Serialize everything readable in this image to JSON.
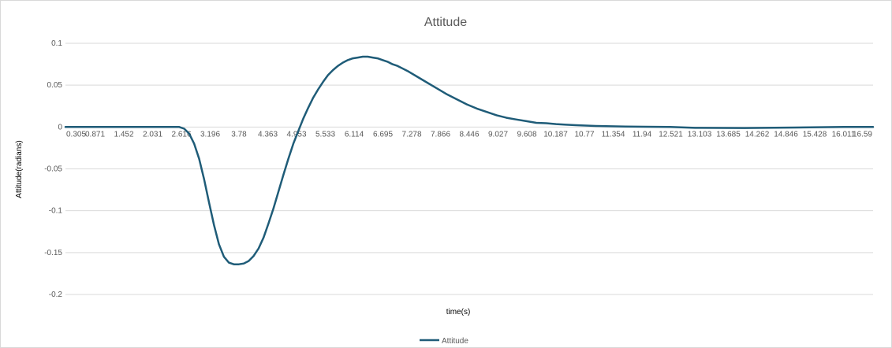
{
  "chart_data": {
    "type": "line",
    "title": "Attitude",
    "xlabel": "time(s)",
    "ylabel": "Attitude(radians)",
    "ylim": [
      -0.2,
      0.1
    ],
    "y_ticks": [
      "0.1",
      "0.05",
      "0",
      "-0.05",
      "-0.1",
      "-0.15",
      "-0.2"
    ],
    "y_tick_values": [
      0.1,
      0.05,
      0,
      -0.05,
      -0.1,
      -0.15,
      -0.2
    ],
    "x_tick_labels": [
      "0.305",
      "0.871",
      "1.452",
      "2.031",
      "2.616",
      "3.196",
      "3.78",
      "4.363",
      "4.953",
      "5.533",
      "6.114",
      "6.695",
      "7.278",
      "7.866",
      "8.446",
      "9.027",
      "9.608",
      "10.187",
      "10.77",
      "11.354",
      "11.94",
      "12.521",
      "13.103",
      "13.685",
      "14.262",
      "14.846",
      "15.428",
      "16.011",
      "16.59"
    ],
    "x_range": [
      0.305,
      16.59
    ],
    "grid": true,
    "legend_position": "bottom",
    "series": [
      {
        "name": "Attitude",
        "color": "#1f5c78",
        "x": [
          0.305,
          1.0,
          2.0,
          2.6,
          2.7,
          2.8,
          2.9,
          3.0,
          3.1,
          3.2,
          3.3,
          3.4,
          3.5,
          3.6,
          3.7,
          3.8,
          3.9,
          4.0,
          4.1,
          4.2,
          4.3,
          4.4,
          4.5,
          4.6,
          4.7,
          4.8,
          4.9,
          5.0,
          5.1,
          5.2,
          5.3,
          5.4,
          5.5,
          5.6,
          5.7,
          5.8,
          5.9,
          6.0,
          6.1,
          6.2,
          6.3,
          6.4,
          6.5,
          6.6,
          6.7,
          6.8,
          6.9,
          7.0,
          7.2,
          7.4,
          7.6,
          7.8,
          8.0,
          8.2,
          8.4,
          8.6,
          8.8,
          9.0,
          9.2,
          9.4,
          9.6,
          9.8,
          10.0,
          10.2,
          10.4,
          10.6,
          10.8,
          11.0,
          11.2,
          11.4,
          11.6,
          11.8,
          12.0,
          12.5,
          13.0,
          14.0,
          15.0,
          16.0,
          16.59
        ],
        "y": [
          0,
          0,
          0,
          0,
          -0.002,
          -0.008,
          -0.02,
          -0.038,
          -0.062,
          -0.09,
          -0.117,
          -0.14,
          -0.155,
          -0.162,
          -0.164,
          -0.164,
          -0.163,
          -0.16,
          -0.154,
          -0.145,
          -0.132,
          -0.115,
          -0.097,
          -0.077,
          -0.057,
          -0.038,
          -0.02,
          -0.005,
          0.01,
          0.023,
          0.035,
          0.045,
          0.054,
          0.062,
          0.068,
          0.073,
          0.077,
          0.08,
          0.082,
          0.083,
          0.084,
          0.084,
          0.083,
          0.082,
          0.08,
          0.078,
          0.075,
          0.073,
          0.067,
          0.06,
          0.053,
          0.046,
          0.039,
          0.033,
          0.027,
          0.022,
          0.018,
          0.014,
          0.011,
          0.009,
          0.007,
          0.005,
          0.0045,
          0.0035,
          0.0028,
          0.0022,
          0.0017,
          0.0013,
          0.001,
          0.0008,
          0.0006,
          0.0004,
          0.0003,
          0,
          -0.001,
          -0.0012,
          -0.0006,
          0,
          0
        ]
      }
    ]
  }
}
